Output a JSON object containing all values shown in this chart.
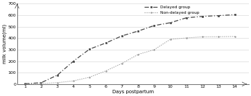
{
  "days": [
    1,
    2,
    3,
    4,
    5,
    6,
    7,
    8,
    9,
    10,
    11,
    12,
    13,
    14
  ],
  "delayed": [
    3,
    12,
    78,
    200,
    305,
    358,
    420,
    462,
    510,
    535,
    578,
    590,
    597,
    605
  ],
  "non_delayed": [
    1,
    5,
    12,
    28,
    60,
    115,
    180,
    258,
    300,
    390,
    402,
    412,
    413,
    415
  ],
  "ylabel": "milk volume(ml)",
  "xlabel": "Days postpartum",
  "ylim": [
    0,
    700
  ],
  "yticks": [
    0,
    100,
    200,
    300,
    400,
    500,
    600,
    700
  ],
  "xticks": [
    1,
    2,
    3,
    4,
    5,
    6,
    7,
    8,
    9,
    10,
    11,
    12,
    13,
    14
  ],
  "legend_delayed": "Delayed group",
  "legend_non_delayed": "Non-delayed group",
  "color_delayed": "#444444",
  "color_non_delayed": "#999999",
  "bg_color": "#ffffff",
  "grid_color": "#d0d0d0"
}
